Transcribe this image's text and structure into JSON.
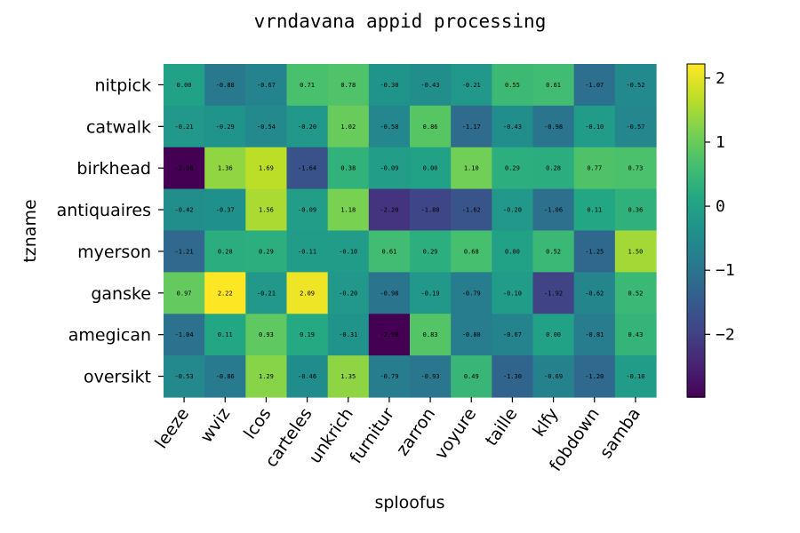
{
  "chart_data": {
    "type": "heatmap",
    "title": "vrndavana appid processing",
    "xlabel": "sploofus",
    "ylabel": "tzname",
    "x_categories": [
      "leeze",
      "wviz",
      "lcos",
      "carteles",
      "unkrich",
      "furnitur",
      "zarron",
      "voyure",
      "taille",
      "klfy",
      "fobdown",
      "samba"
    ],
    "y_categories": [
      "nitpick",
      "catwalk",
      "birkhead",
      "antiquaires",
      "myerson",
      "ganske",
      "amegican",
      "oversikt"
    ],
    "values": [
      [
        0.0,
        -0.88,
        -0.67,
        0.71,
        0.78,
        -0.3,
        -0.43,
        -0.21,
        0.55,
        0.61,
        -1.07,
        -0.52
      ],
      [
        -0.21,
        -0.29,
        -0.54,
        -0.2,
        1.02,
        -0.58,
        0.86,
        -1.17,
        -0.43,
        -0.98,
        -0.1,
        -0.57
      ],
      [
        -2.98,
        1.36,
        1.69,
        -1.64,
        0.38,
        -0.09,
        0.0,
        1.1,
        0.29,
        0.28,
        0.77,
        0.73
      ],
      [
        -0.42,
        -0.37,
        1.56,
        -0.09,
        1.18,
        -2.2,
        -1.88,
        -1.62,
        -0.2,
        -1.06,
        0.11,
        0.36
      ],
      [
        -1.21,
        0.28,
        0.29,
        -0.11,
        -0.1,
        0.61,
        0.29,
        0.68,
        0.0,
        0.52,
        -1.25,
        1.5
      ],
      [
        0.97,
        2.22,
        -0.21,
        2.09,
        -0.2,
        -0.98,
        -0.19,
        -0.79,
        -0.1,
        -1.92,
        -0.62,
        0.52
      ],
      [
        -1.04,
        0.11,
        0.93,
        0.19,
        -0.31,
        -2.98,
        0.83,
        -0.8,
        -0.67,
        0.0,
        -0.81,
        0.43
      ],
      [
        -0.53,
        -0.86,
        1.29,
        -0.46,
        1.35,
        -0.79,
        -0.93,
        0.49,
        -1.3,
        -0.69,
        -1.2,
        -0.1
      ]
    ],
    "colormap": "viridis",
    "vmin": -2.98,
    "vmax": 2.22,
    "colorbar_ticks": [
      2,
      1,
      0,
      -1,
      -2
    ],
    "colorbar_tick_labels": [
      "2",
      "1",
      "0",
      "−1",
      "−2"
    ],
    "grid": false
  }
}
